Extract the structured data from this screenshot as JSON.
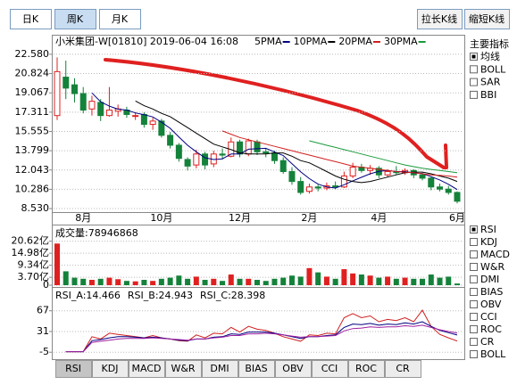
{
  "toolbar": {
    "periods": [
      {
        "label": "日K",
        "selected": false
      },
      {
        "label": "周K",
        "selected": true
      },
      {
        "label": "月K",
        "selected": false
      }
    ],
    "actions": [
      "拉长K线",
      "缩短K线"
    ]
  },
  "chart_data": [
    {
      "type": "candlestick",
      "title": "小米集团-W[01810] 2019-06-04 16:08",
      "categories": [
        null,
        null,
        null,
        "8月",
        null,
        null,
        null,
        null,
        null,
        null,
        null,
        null,
        "10月",
        null,
        null,
        null,
        null,
        null,
        null,
        null,
        null,
        "12月",
        null,
        null,
        null,
        null,
        null,
        null,
        null,
        "2月",
        null,
        null,
        null,
        null,
        null,
        null,
        null,
        "4月",
        null,
        null,
        null,
        null,
        null,
        null,
        null,
        null,
        "6月"
      ],
      "open": [
        17.0,
        20.5,
        19.8,
        19.0,
        17.6,
        18.2,
        17.0,
        17.4,
        17.5,
        17.0,
        17.1,
        16.2,
        16.5,
        15.2,
        14.3,
        13.0,
        12.5,
        13.5,
        12.6,
        13.5,
        13.3,
        14.6,
        13.5,
        14.6,
        13.7,
        13.6,
        12.9,
        11.9,
        11.0,
        10.1,
        10.5,
        10.4,
        10.6,
        10.5,
        11.5,
        12.3,
        12.0,
        12.2,
        11.6,
        11.9,
        11.8,
        12.0,
        11.6,
        11.3,
        10.5,
        10.3,
        10.0
      ],
      "high": [
        22.3,
        22.0,
        20.4,
        19.6,
        18.8,
        18.5,
        19.6,
        18.0,
        17.8,
        17.3,
        17.3,
        16.8,
        16.7,
        15.5,
        14.5,
        13.2,
        13.9,
        13.7,
        13.8,
        14.0,
        15.0,
        14.8,
        14.9,
        14.8,
        14.0,
        13.8,
        13.2,
        12.3,
        11.4,
        10.8,
        10.7,
        10.9,
        11.0,
        11.9,
        12.7,
        12.6,
        12.5,
        12.4,
        12.1,
        12.4,
        12.2,
        12.1,
        11.8,
        11.4,
        10.8,
        10.6,
        10.1
      ],
      "low": [
        16.6,
        18.5,
        18.2,
        17.2,
        17.0,
        16.5,
        16.9,
        16.9,
        16.8,
        16.6,
        15.9,
        15.7,
        15.0,
        14.0,
        12.8,
        12.0,
        12.2,
        12.1,
        12.3,
        13.0,
        13.2,
        13.2,
        13.3,
        13.4,
        13.2,
        12.6,
        11.7,
        10.7,
        9.8,
        9.9,
        10.1,
        10.2,
        10.3,
        10.4,
        11.3,
        11.8,
        11.6,
        11.3,
        11.4,
        11.6,
        11.6,
        11.3,
        11.1,
        10.2,
        10.1,
        9.8,
        9.0
      ],
      "close": [
        21.0,
        19.5,
        19.0,
        17.5,
        18.3,
        17.0,
        17.5,
        17.6,
        17.1,
        17.0,
        16.2,
        16.5,
        15.2,
        14.3,
        13.1,
        12.4,
        13.5,
        12.5,
        13.5,
        13.4,
        14.6,
        13.5,
        14.7,
        13.7,
        13.6,
        12.9,
        11.9,
        11.0,
        10.0,
        10.5,
        10.4,
        10.6,
        10.5,
        11.5,
        12.3,
        12.0,
        12.2,
        11.6,
        11.9,
        11.8,
        12.0,
        11.6,
        11.3,
        10.5,
        10.3,
        10.0,
        9.2
      ],
      "up_color": "#e02020",
      "down_color": "#14823a",
      "series": [
        {
          "name": "5PMA",
          "color": "#000080",
          "values": [
            null,
            null,
            null,
            null,
            19.06,
            18.26,
            17.86,
            17.58,
            17.5,
            17.24,
            17.08,
            16.88,
            16.4,
            15.84,
            15.06,
            14.3,
            13.7,
            13.16,
            13.0,
            13.06,
            13.5,
            13.5,
            13.94,
            13.98,
            14.02,
            13.68,
            13.36,
            12.62,
            11.88,
            11.26,
            10.76,
            10.5,
            10.4,
            10.7,
            11.06,
            11.38,
            11.7,
            11.92,
            12.0,
            11.9,
            11.9,
            11.78,
            11.72,
            11.44,
            11.14,
            10.74,
            10.26
          ]
        },
        {
          "name": "10PMA",
          "color": "#000000",
          "values": [
            null,
            null,
            null,
            null,
            null,
            null,
            null,
            null,
            null,
            18.33,
            17.9,
            17.6,
            17.2,
            16.9,
            16.4,
            15.9,
            15.4,
            14.9,
            14.4,
            14.15,
            13.9,
            13.6,
            13.5,
            13.5,
            13.5,
            13.6,
            13.6,
            13.3,
            12.9,
            12.7,
            12.3,
            11.9,
            11.5,
            11.2,
            11.0,
            10.9,
            11.0,
            11.2,
            11.4,
            11.6,
            11.8,
            11.85,
            11.85,
            11.7,
            11.5,
            11.3,
            11.0
          ]
        },
        {
          "name": "20PMA",
          "color": "#d02020",
          "values": [
            null,
            null,
            null,
            null,
            null,
            null,
            null,
            null,
            null,
            null,
            null,
            null,
            null,
            null,
            null,
            null,
            null,
            null,
            null,
            15.6,
            15.3,
            15.0,
            14.8,
            14.6,
            14.4,
            14.2,
            14.0,
            13.8,
            13.6,
            13.4,
            13.2,
            13.0,
            12.8,
            12.6,
            12.4,
            12.3,
            12.2,
            12.1,
            12.0,
            11.9,
            11.85,
            11.8,
            11.7,
            11.6,
            11.55,
            11.5,
            11.4
          ]
        },
        {
          "name": "30PMA",
          "color": "#1a9a3a",
          "values": [
            null,
            null,
            null,
            null,
            null,
            null,
            null,
            null,
            null,
            null,
            null,
            null,
            null,
            null,
            null,
            null,
            null,
            null,
            null,
            null,
            null,
            null,
            null,
            null,
            null,
            null,
            null,
            null,
            null,
            14.7,
            14.5,
            14.3,
            14.1,
            13.9,
            13.7,
            13.5,
            13.3,
            13.1,
            12.9,
            12.7,
            12.5,
            12.35,
            12.2,
            12.1,
            12.0,
            11.9,
            11.8
          ]
        }
      ],
      "ylim": [
        8.21,
        23.06
      ],
      "yticks": [
        {
          "value": 22.58,
          "label": "22.580"
        },
        20.824,
        19.067,
        17.311,
        15.555,
        13.799,
        12.043,
        10.286,
        {
          "value": 8.53,
          "label": "8.530"
        }
      ],
      "grid": true
    },
    {
      "type": "bar",
      "title": "成交量:78946868",
      "values": [
        19.5,
        6.5,
        3.5,
        3.0,
        2.5,
        3.0,
        3.5,
        2.8,
        2.0,
        1.8,
        2.5,
        2.0,
        3.0,
        3.5,
        4.5,
        3.0,
        4.0,
        2.5,
        3.0,
        2.0,
        5.0,
        3.0,
        3.0,
        2.5,
        2.0,
        3.0,
        3.5,
        4.5,
        4.0,
        8.0,
        6.0,
        4.0,
        3.0,
        7.5,
        5.5,
        5.0,
        4.5,
        3.5,
        4.0,
        3.0,
        3.5,
        3.0,
        3.0,
        5.0,
        3.5,
        4.0,
        0.79
      ],
      "ylim": [
        0,
        26.3
      ],
      "yticks": [
        {
          "value": 20.62,
          "label": "20.62亿"
        },
        {
          "value": 14.98,
          "label": "14.98亿"
        },
        {
          "value": 9.34,
          "label": "9.34亿"
        },
        {
          "value": 3.7,
          "label": "3.70亿"
        },
        0
      ],
      "grid": true
    },
    {
      "type": "line",
      "readouts": [
        "RSI_A:14.466",
        "RSI_B:24.943",
        "RSI_C:28.398"
      ],
      "series": [
        {
          "color": "#d02020",
          "values": [
            null,
            -4,
            -4,
            -4,
            22,
            18,
            28,
            26,
            24,
            22,
            20,
            24,
            20,
            18,
            15,
            14,
            25,
            20,
            28,
            27,
            38,
            30,
            40,
            35,
            33,
            28,
            22,
            18,
            14,
            25,
            24,
            28,
            27,
            55,
            62,
            55,
            58,
            48,
            52,
            50,
            55,
            48,
            68,
            40,
            26,
            20,
            14.466
          ]
        },
        {
          "color": "#000080",
          "values": [
            null,
            -4,
            -4,
            -4,
            15,
            17,
            20,
            22,
            22,
            21,
            20,
            21,
            20,
            18,
            16,
            15,
            18,
            18,
            21,
            22,
            27,
            26,
            30,
            30,
            30,
            28,
            25,
            22,
            19,
            22,
            22,
            24,
            25,
            38,
            44,
            43,
            45,
            42,
            44,
            43,
            46,
            44,
            48,
            40,
            33,
            29,
            24.943
          ]
        },
        {
          "color": "#a020a0",
          "values": [
            null,
            -4,
            -4,
            -4,
            12,
            14,
            16,
            18,
            19,
            19,
            19,
            20,
            19,
            18,
            17,
            16,
            18,
            18,
            20,
            21,
            24,
            24,
            27,
            27,
            28,
            27,
            25,
            23,
            21,
            22,
            22,
            23,
            24,
            32,
            36,
            37,
            39,
            38,
            39,
            39,
            41,
            40,
            42,
            38,
            34,
            31,
            28.398
          ]
        }
      ],
      "ylim": [
        -15.5,
        80.5
      ],
      "yticks": [
        67,
        31,
        -5
      ],
      "grid": true
    }
  ],
  "side_panel": {
    "title": "主要指标",
    "main": [
      {
        "label": "均线",
        "checked": true
      },
      {
        "label": "BOLL",
        "checked": false
      },
      {
        "label": "SAR",
        "checked": false
      },
      {
        "label": "BBI",
        "checked": false
      }
    ],
    "sub": [
      {
        "label": "RSI",
        "checked": true
      },
      {
        "label": "KDJ",
        "checked": false
      },
      {
        "label": "MACD",
        "checked": false
      },
      {
        "label": "W&R",
        "checked": false
      },
      {
        "label": "DMI",
        "checked": false
      },
      {
        "label": "BIAS",
        "checked": false
      },
      {
        "label": "OBV",
        "checked": false
      },
      {
        "label": "CCI",
        "checked": false
      },
      {
        "label": "ROC",
        "checked": false
      },
      {
        "label": "CR",
        "checked": false
      },
      {
        "label": "BOLL",
        "checked": false
      }
    ]
  },
  "tabs": [
    {
      "label": "RSI",
      "selected": true
    },
    {
      "label": "KDJ",
      "selected": false
    },
    {
      "label": "MACD",
      "selected": false
    },
    {
      "label": "W&R",
      "selected": false
    },
    {
      "label": "DMI",
      "selected": false
    },
    {
      "label": "BIAS",
      "selected": false
    },
    {
      "label": "OBV",
      "selected": false
    },
    {
      "label": "CCI",
      "selected": false
    },
    {
      "label": "ROC",
      "selected": false
    },
    {
      "label": "CR",
      "selected": false
    }
  ]
}
